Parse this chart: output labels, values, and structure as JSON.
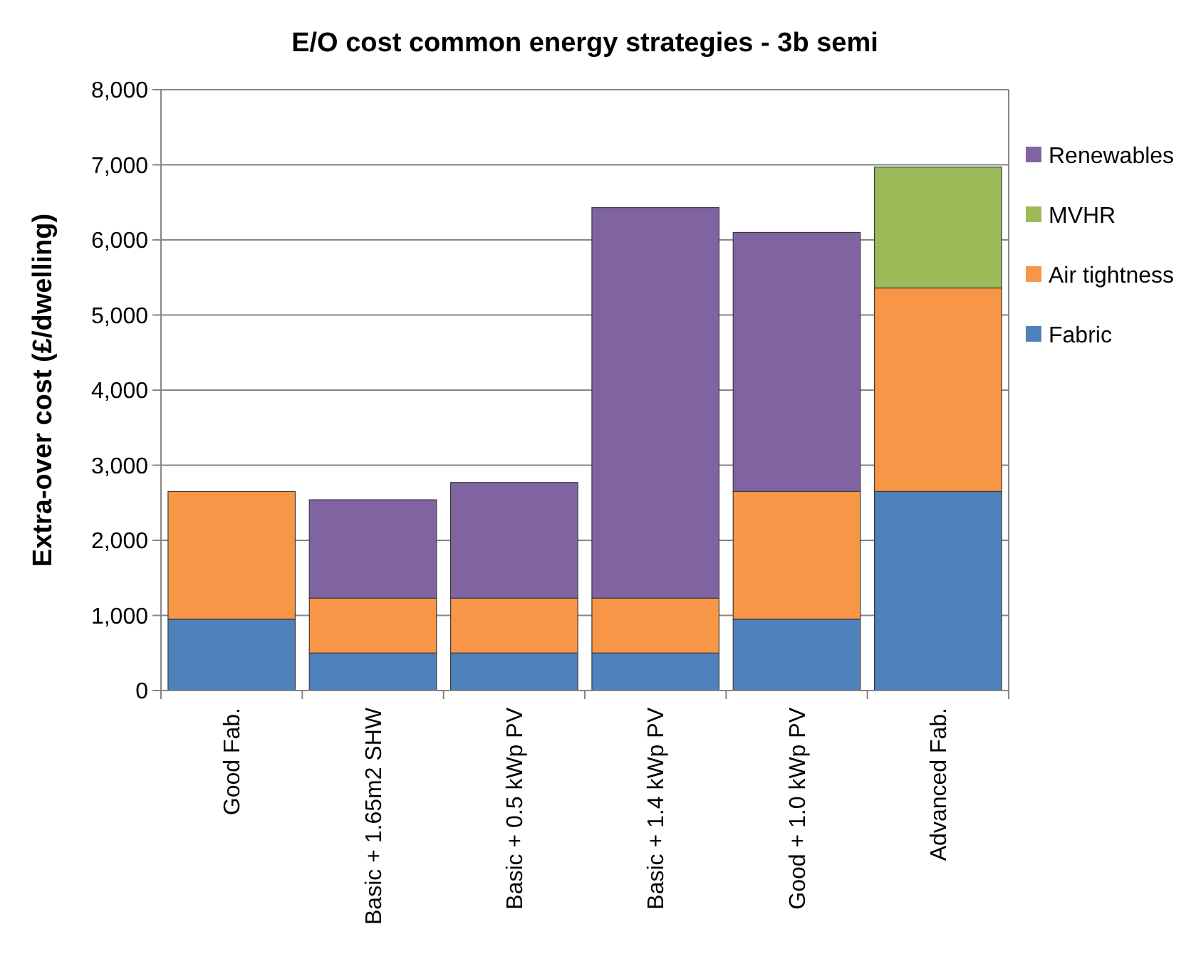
{
  "chart_data": {
    "type": "bar",
    "title": "E/O cost common energy strategies - 3b semi",
    "ylabel": "Extra-over cost (£/dwelling)",
    "categories": [
      "Good Fab.",
      "Basic + 1.65m2 SHW",
      "Basic + 0.5 kWp PV",
      "Basic + 1.4 kWp PV",
      "Good + 1.0 kWp PV",
      "Advanced Fab."
    ],
    "stacked": true,
    "series": [
      {
        "name": "Fabric",
        "color": "#4f81bd",
        "values": [
          950,
          500,
          500,
          500,
          950,
          2650
        ]
      },
      {
        "name": "Air tightness",
        "color": "#f79646",
        "values": [
          1700,
          730,
          730,
          730,
          1700,
          2710
        ]
      },
      {
        "name": "MVHR",
        "color": "#9bbb59",
        "values": [
          0,
          0,
          0,
          0,
          0,
          1610
        ]
      },
      {
        "name": "Renewables",
        "color": "#8064a2",
        "values": [
          0,
          1310,
          1540,
          5200,
          3450,
          0
        ]
      }
    ],
    "ylim": [
      0,
      8000
    ],
    "yticks": [
      {
        "value": 0,
        "label": "0"
      },
      {
        "value": 1000,
        "label": "1,000"
      },
      {
        "value": 2000,
        "label": "2,000"
      },
      {
        "value": 3000,
        "label": "3,000"
      },
      {
        "value": 4000,
        "label": "4,000"
      },
      {
        "value": 5000,
        "label": "5,000"
      },
      {
        "value": 6000,
        "label": "6,000"
      },
      {
        "value": 7000,
        "label": "7,000"
      },
      {
        "value": 8000,
        "label": "8,000"
      }
    ],
    "grid": "y",
    "legend": "right"
  }
}
